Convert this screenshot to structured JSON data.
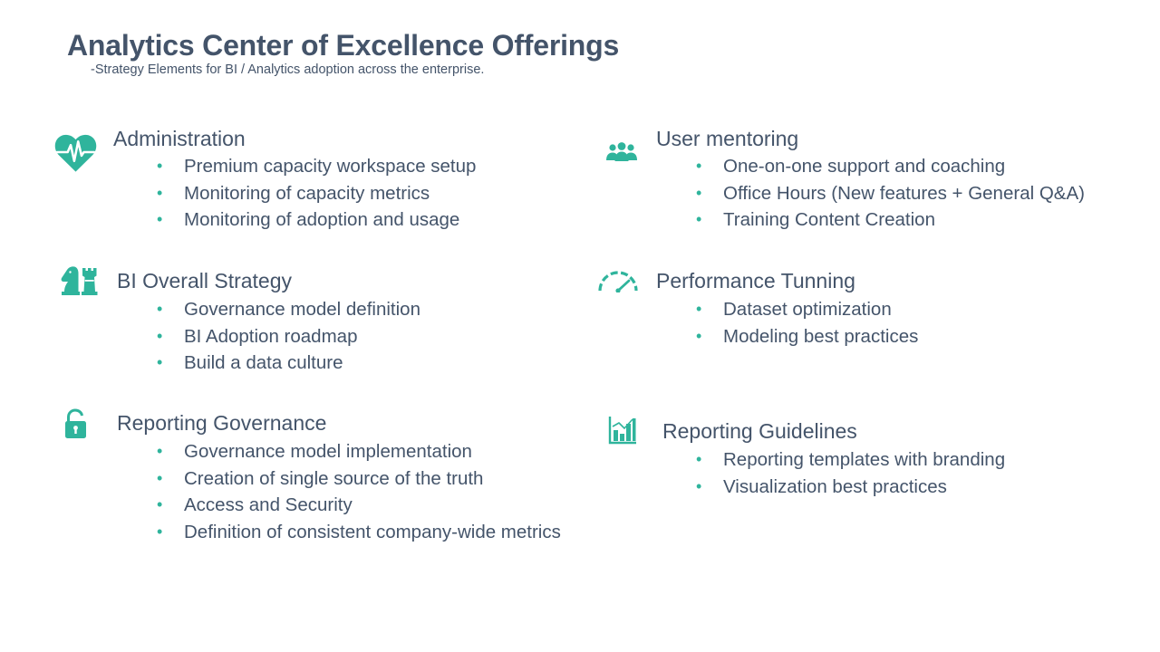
{
  "header": {
    "title": "Analytics Center of Excellence Offerings",
    "subtitle": "-Strategy Elements for BI / Analytics adoption across the enterprise."
  },
  "colors": {
    "accent": "#2fb49c",
    "text": "#44546a"
  },
  "sections": [
    {
      "title": "Administration",
      "icon": "heartbeat-icon",
      "bullets": [
        "Premium capacity workspace setup",
        "Monitoring of capacity metrics",
        "Monitoring of adoption and usage"
      ]
    },
    {
      "title": "User mentoring",
      "icon": "users-icon",
      "bullets": [
        "One-on-one support and coaching",
        "Office Hours (New features + General Q&A)",
        "Training Content Creation"
      ]
    },
    {
      "title": "BI Overall Strategy",
      "icon": "chess-pieces-icon",
      "bullets": [
        "Governance model definition",
        "BI Adoption roadmap",
        "Build a data culture"
      ]
    },
    {
      "title": "Performance Tunning",
      "icon": "speedometer-icon",
      "bullets": [
        "Dataset optimization",
        "Modeling best practices"
      ]
    },
    {
      "title": "Reporting Governance",
      "icon": "unlocked-padlock-icon",
      "bullets": [
        "Governance model implementation",
        "Creation of single source of the truth",
        "Access and Security",
        "Definition of consistent company-wide metrics"
      ]
    },
    {
      "title": "Reporting Guidelines",
      "icon": "bar-chart-icon",
      "bullets": [
        "Reporting templates with branding",
        "Visualization best practices"
      ]
    }
  ]
}
